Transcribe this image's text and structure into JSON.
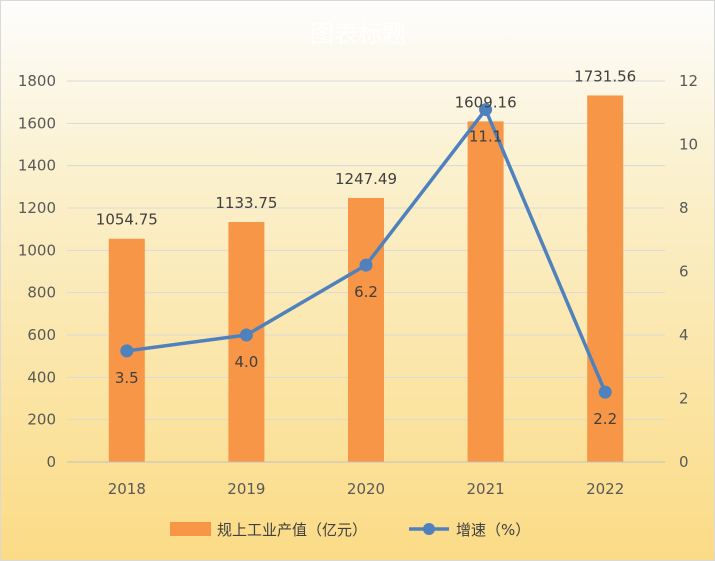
{
  "chart_data": {
    "type": "bar+line",
    "title": "图表标题",
    "categories": [
      "2018",
      "2019",
      "2020",
      "2021",
      "2022"
    ],
    "series": [
      {
        "name": "规上工业产值（亿元）",
        "type": "bar",
        "axis": "left",
        "values": [
          1054.75,
          1133.75,
          1247.49,
          1609.16,
          1731.56
        ],
        "labels": [
          "1054.75",
          "1133.75",
          "1247.49",
          "1609.16",
          "1731.56"
        ]
      },
      {
        "name": "增速（%）",
        "type": "line",
        "axis": "right",
        "values": [
          3.5,
          4.0,
          6.2,
          11.1,
          2.2
        ],
        "labels": [
          "3.5",
          "4.0",
          "6.2",
          "11.1",
          "2.2"
        ]
      }
    ],
    "y_left": {
      "ylim": [
        0,
        1800
      ],
      "ticks": [
        "0",
        "200",
        "400",
        "600",
        "800",
        "1000",
        "1200",
        "1400",
        "1600",
        "1800"
      ]
    },
    "y_right": {
      "ylim": [
        0,
        12
      ],
      "ticks": [
        "0",
        "2",
        "4",
        "6",
        "8",
        "10",
        "12"
      ]
    },
    "grid": true,
    "legend": "bottom",
    "colors": {
      "bar": "#f79646",
      "line": "#4f81bd"
    }
  }
}
